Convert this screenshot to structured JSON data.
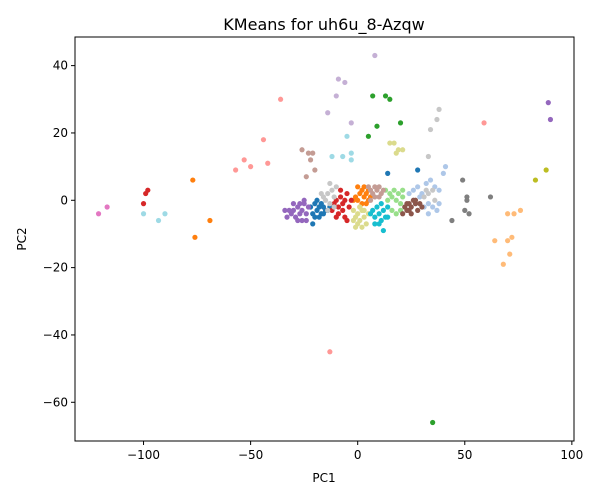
{
  "chart_data": {
    "type": "scatter",
    "title": "KMeans for uh6u_8-Azqw",
    "xlabel": "PC1",
    "ylabel": "PC2",
    "xlim": [
      -132,
      101
    ],
    "ylim": [
      -71.5,
      48.5
    ],
    "xticks": [
      -100,
      -50,
      0,
      50,
      100
    ],
    "yticks": [
      40,
      20,
      0,
      -20,
      -40,
      -60
    ],
    "grid": false,
    "legend": "none",
    "colors": {
      "c0": "#1f77b4",
      "c1": "#aec7e8",
      "c2": "#ff7f0e",
      "c3": "#ffbb78",
      "c4": "#2ca02c",
      "c5": "#98df8a",
      "c6": "#d62728",
      "c7": "#ff9896",
      "c8": "#9467bd",
      "c9": "#c5b0d5",
      "c10": "#8c564b",
      "c11": "#c49c94",
      "c12": "#e377c2",
      "c13": "#7f7f7f",
      "c14": "#c7c7c7",
      "c15": "#bcbd22",
      "c16": "#dbdb8d",
      "c17": "#17becf",
      "c18": "#9edae5"
    },
    "clusters": [
      {
        "color": "c0",
        "points": [
          [
            -20,
            -1
          ],
          [
            -19,
            -3
          ],
          [
            -18,
            -2
          ],
          [
            -17,
            -4
          ],
          [
            -21,
            -4
          ],
          [
            -16,
            -2
          ],
          [
            -15,
            -3
          ],
          [
            -20,
            -5
          ],
          [
            -19,
            0
          ],
          [
            -18,
            -5
          ],
          [
            -17,
            -1
          ],
          [
            -14,
            -3
          ],
          [
            -22,
            -2
          ],
          [
            -16,
            -4
          ],
          [
            -21,
            -7
          ],
          [
            -13,
            -2
          ],
          [
            14,
            8
          ],
          [
            28,
            9
          ]
        ]
      },
      {
        "color": "c1",
        "points": [
          [
            26,
            3
          ],
          [
            28,
            4
          ],
          [
            30,
            2
          ],
          [
            32,
            5
          ],
          [
            34,
            6
          ],
          [
            36,
            4
          ],
          [
            38,
            3
          ],
          [
            40,
            8
          ],
          [
            41,
            10
          ],
          [
            27,
            -1
          ],
          [
            29,
            1
          ],
          [
            31,
            -2
          ],
          [
            33,
            -1
          ],
          [
            35,
            -2
          ],
          [
            37,
            -3
          ],
          [
            38,
            -1
          ],
          [
            24,
            2
          ],
          [
            33,
            -4
          ]
        ]
      },
      {
        "color": "c2",
        "points": [
          [
            0,
            0
          ],
          [
            1,
            2
          ],
          [
            2,
            3
          ],
          [
            3,
            1
          ],
          [
            4,
            2
          ],
          [
            5,
            0
          ],
          [
            -1,
            1
          ],
          [
            2,
            -1
          ],
          [
            3,
            4
          ],
          [
            0,
            4
          ],
          [
            1,
            -2
          ],
          [
            4,
            -1
          ],
          [
            5,
            3
          ],
          [
            6,
            1
          ],
          [
            -2,
            0
          ],
          [
            -77,
            6
          ],
          [
            -76,
            -11
          ],
          [
            -69,
            -6
          ]
        ]
      },
      {
        "color": "c3",
        "points": [
          [
            64,
            -12
          ],
          [
            68,
            -19
          ],
          [
            70,
            -12
          ],
          [
            71,
            -16
          ],
          [
            72,
            -11
          ],
          [
            73,
            -4
          ],
          [
            76,
            -3
          ],
          [
            70,
            -4
          ]
        ]
      },
      {
        "color": "c4",
        "points": [
          [
            7,
            31
          ],
          [
            13,
            31
          ],
          [
            15,
            30
          ],
          [
            9,
            22
          ],
          [
            5,
            19
          ],
          [
            20,
            23
          ],
          [
            35,
            -66
          ]
        ]
      },
      {
        "color": "c5",
        "points": [
          [
            14,
            0
          ],
          [
            15,
            2
          ],
          [
            16,
            1
          ],
          [
            17,
            3
          ],
          [
            18,
            0
          ],
          [
            19,
            2
          ],
          [
            20,
            -1
          ],
          [
            21,
            1
          ],
          [
            22,
            -2
          ],
          [
            16,
            -3
          ],
          [
            18,
            -4
          ],
          [
            20,
            -3
          ],
          [
            13,
            3
          ],
          [
            21,
            3
          ]
        ]
      },
      {
        "color": "c6",
        "points": [
          [
            -10,
            0
          ],
          [
            -9,
            -2
          ],
          [
            -8,
            1
          ],
          [
            -7,
            -3
          ],
          [
            -6,
            0
          ],
          [
            -5,
            2
          ],
          [
            -11,
            -1
          ],
          [
            -9,
            -4
          ],
          [
            -6,
            -5
          ],
          [
            -4,
            -2
          ],
          [
            -8,
            3
          ],
          [
            -3,
            0
          ],
          [
            -12,
            -3
          ],
          [
            -5,
            -6
          ],
          [
            -10,
            -5
          ],
          [
            -7,
            -1
          ],
          [
            -100,
            -1
          ],
          [
            -99,
            2
          ],
          [
            -98,
            3
          ]
        ]
      },
      {
        "color": "c7",
        "points": [
          [
            -36,
            30
          ],
          [
            -44,
            18
          ],
          [
            -53,
            12
          ],
          [
            -57,
            9
          ],
          [
            -50,
            10
          ],
          [
            -42,
            11
          ],
          [
            59,
            23
          ],
          [
            -13,
            -45
          ]
        ]
      },
      {
        "color": "c8",
        "points": [
          [
            -30,
            -3
          ],
          [
            -29,
            -5
          ],
          [
            -28,
            -2
          ],
          [
            -27,
            -4
          ],
          [
            -26,
            -3
          ],
          [
            -25,
            -1
          ],
          [
            -24,
            -4
          ],
          [
            -23,
            -2
          ],
          [
            -31,
            -4
          ],
          [
            -32,
            -3
          ],
          [
            -33,
            -5
          ],
          [
            -34,
            -3
          ],
          [
            -26,
            -6
          ],
          [
            -28,
            -6
          ],
          [
            -25,
            0
          ],
          [
            -27,
            -1
          ],
          [
            -30,
            -1
          ],
          [
            -24,
            -6
          ],
          [
            89,
            29
          ],
          [
            90,
            24
          ]
        ]
      },
      {
        "color": "c9",
        "points": [
          [
            -9,
            36
          ],
          [
            -10,
            31
          ],
          [
            -14,
            26
          ],
          [
            -3,
            23
          ],
          [
            -6,
            35
          ],
          [
            8,
            43
          ]
        ]
      },
      {
        "color": "c10",
        "points": [
          [
            22,
            -2
          ],
          [
            23,
            -1
          ],
          [
            24,
            -3
          ],
          [
            25,
            -2
          ],
          [
            26,
            0
          ],
          [
            27,
            -1
          ],
          [
            28,
            -3
          ],
          [
            29,
            -1
          ],
          [
            30,
            -2
          ],
          [
            23,
            -3
          ],
          [
            25,
            -4
          ],
          [
            21,
            -4
          ],
          [
            27,
            0
          ],
          [
            24,
            -1
          ]
        ]
      },
      {
        "color": "c11",
        "points": [
          [
            5,
            4
          ],
          [
            6,
            3
          ],
          [
            7,
            2
          ],
          [
            8,
            4
          ],
          [
            9,
            3
          ],
          [
            10,
            1
          ],
          [
            11,
            2
          ],
          [
            12,
            3
          ],
          [
            6,
            0
          ],
          [
            8,
            1
          ],
          [
            10,
            4
          ],
          [
            -23,
            14
          ],
          [
            -22,
            12
          ],
          [
            -20,
            9
          ],
          [
            -26,
            15
          ],
          [
            -24,
            7
          ],
          [
            -21,
            14
          ]
        ]
      },
      {
        "color": "c12",
        "points": [
          [
            -121,
            -4
          ],
          [
            -117,
            -2
          ]
        ]
      },
      {
        "color": "c13",
        "points": [
          [
            44,
            -6
          ],
          [
            49,
            6
          ],
          [
            51,
            0
          ],
          [
            50,
            -3
          ],
          [
            52,
            -4
          ],
          [
            51,
            1
          ],
          [
            62,
            1
          ]
        ]
      },
      {
        "color": "c14",
        "points": [
          [
            -15,
            0
          ],
          [
            -14,
            2
          ],
          [
            -13,
            -1
          ],
          [
            -12,
            3
          ],
          [
            -11,
            1
          ],
          [
            -16,
            1
          ],
          [
            -10,
            4
          ],
          [
            -14,
            -3
          ],
          [
            -13,
            5
          ],
          [
            -17,
            2
          ],
          [
            -11,
            -2
          ],
          [
            33,
            13
          ],
          [
            34,
            21
          ],
          [
            37,
            24
          ],
          [
            38,
            27
          ],
          [
            32,
            3
          ],
          [
            31,
            1
          ],
          [
            33,
            2
          ],
          [
            35,
            3
          ],
          [
            36,
            0
          ]
        ]
      },
      {
        "color": "c15",
        "points": [
          [
            83,
            6
          ],
          [
            88,
            9
          ]
        ]
      },
      {
        "color": "c16",
        "points": [
          [
            -2,
            -3
          ],
          [
            -1,
            -5
          ],
          [
            0,
            -4
          ],
          [
            1,
            -6
          ],
          [
            2,
            -3
          ],
          [
            3,
            -5
          ],
          [
            4,
            -7
          ],
          [
            -1,
            -8
          ],
          [
            1,
            -2
          ],
          [
            3,
            -3
          ],
          [
            -2,
            -6
          ],
          [
            0,
            -7
          ],
          [
            2,
            -8
          ],
          [
            5,
            -4
          ],
          [
            15,
            17
          ],
          [
            17,
            17
          ],
          [
            18,
            14
          ],
          [
            19,
            15
          ],
          [
            21,
            15
          ]
        ]
      },
      {
        "color": "c17",
        "points": [
          [
            7,
            -3
          ],
          [
            8,
            -5
          ],
          [
            9,
            -2
          ],
          [
            10,
            -4
          ],
          [
            11,
            -6
          ],
          [
            12,
            -3
          ],
          [
            13,
            -5
          ],
          [
            14,
            -2
          ],
          [
            8,
            -7
          ],
          [
            10,
            -7
          ],
          [
            12,
            -9
          ],
          [
            14,
            -5
          ],
          [
            6,
            -4
          ],
          [
            11,
            -1
          ]
        ]
      },
      {
        "color": "c18",
        "points": [
          [
            -12,
            13
          ],
          [
            -7,
            13
          ],
          [
            -5,
            19
          ],
          [
            -3,
            12
          ],
          [
            -3,
            14
          ],
          [
            -100,
            -4
          ],
          [
            -93,
            -6
          ],
          [
            -90,
            -4
          ]
        ]
      }
    ]
  }
}
